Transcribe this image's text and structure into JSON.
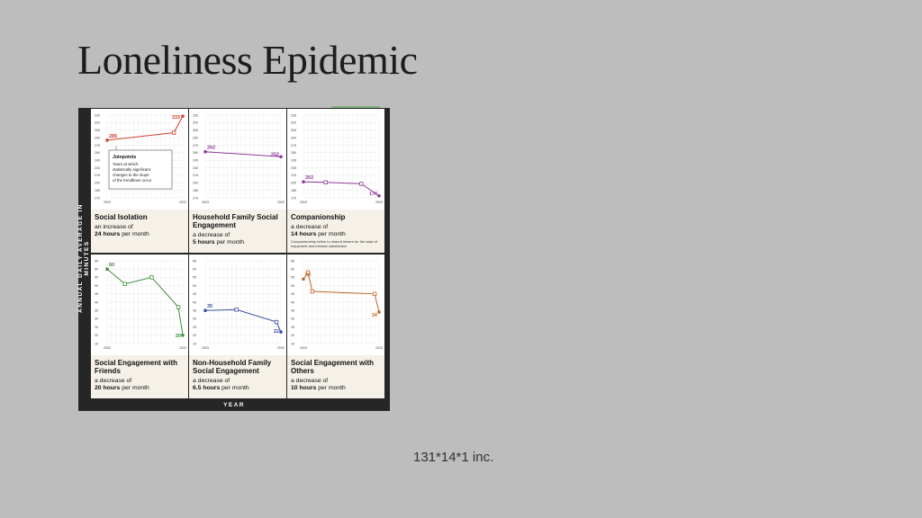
{
  "slide": {
    "title": "Loneliness Epidemic",
    "footer": "131*14*1 inc."
  },
  "figure": {
    "y_axis_label": "ANNUAL DAILY AVERAGE IN MINUTES",
    "x_axis_label": "YEAR",
    "x_tick_labels": [
      "2003",
      "2020"
    ],
    "joinpoints_note": {
      "title": "Joinpoints",
      "text": [
        "Years at which",
        "statistically significant",
        "changes to the slope",
        "of the trendlines occur"
      ]
    }
  },
  "chart_data": [
    {
      "type": "line",
      "title": "Social Isolation",
      "change_prefix": "an increase of",
      "change_amount": "24 hours",
      "change_suffix": "per month",
      "color": "#d6402e",
      "yticks": [
        335,
        320,
        305,
        290,
        275,
        260,
        245,
        230,
        215,
        200,
        185,
        170
      ],
      "ylim": [
        170,
        335
      ],
      "x": [
        2003,
        2018,
        2020
      ],
      "y": [
        285,
        300,
        333
      ],
      "labels": {
        "start": "285",
        "end": "333"
      },
      "joinpoint_x": [
        2018
      ]
    },
    {
      "type": "line",
      "title": "Household Family Social Engagement",
      "change_prefix": "a decrease of",
      "change_amount": "5 hours",
      "change_suffix": "per month",
      "color": "#8e3c99",
      "yticks": [
        335,
        320,
        305,
        290,
        275,
        260,
        245,
        230,
        215,
        200,
        185,
        170
      ],
      "ylim": [
        170,
        335
      ],
      "x": [
        2003,
        2020
      ],
      "y": [
        262,
        252
      ],
      "labels": {
        "start": "262",
        "end": "252"
      },
      "joinpoint_x": []
    },
    {
      "type": "line",
      "title": "Companionship",
      "change_prefix": "a decrease of",
      "change_amount": "14 hours",
      "change_suffix": "per month",
      "note": "Companionship refers to shared leisure for the sake of enjoyment and intrinsic satisfaction",
      "color": "#8e3c99",
      "yticks": [
        335,
        320,
        305,
        290,
        275,
        260,
        245,
        230,
        215,
        200,
        185,
        170
      ],
      "ylim": [
        170,
        335
      ],
      "x": [
        2003,
        2008,
        2016,
        2020
      ],
      "y": [
        202,
        201,
        198,
        174
      ],
      "labels": {
        "start": "202",
        "end": "174"
      },
      "joinpoint_x": [
        2008,
        2016
      ]
    },
    {
      "type": "line",
      "title": "Social Engagement with Friends",
      "change_prefix": "a decrease of",
      "change_amount": "20 hours",
      "change_suffix": "per month",
      "color": "#3f8f3a",
      "yticks": [
        65,
        60,
        55,
        50,
        45,
        40,
        35,
        30,
        25,
        20,
        15
      ],
      "ylim": [
        15,
        65
      ],
      "x": [
        2003,
        2007,
        2013,
        2019,
        2020
      ],
      "y": [
        60,
        51,
        55,
        37,
        20
      ],
      "labels": {
        "start": "60",
        "end": "20"
      },
      "joinpoint_x": [
        2007,
        2013,
        2019
      ]
    },
    {
      "type": "line",
      "title": "Non-Household Family Social Engagement",
      "change_prefix": "a decrease of",
      "change_amount": "6.5 hours",
      "change_suffix": "per month",
      "color": "#3c4fa0",
      "yticks": [
        65,
        60,
        55,
        50,
        45,
        40,
        35,
        30,
        25,
        20,
        15
      ],
      "ylim": [
        15,
        65
      ],
      "x": [
        2003,
        2010,
        2019,
        2020
      ],
      "y": [
        35,
        35.5,
        28,
        22
      ],
      "labels": {
        "start": "35",
        "end": "22"
      },
      "joinpoint_x": [
        2010,
        2019
      ]
    },
    {
      "type": "line",
      "title": "Social Engagement with Others",
      "change_prefix": "a decrease of",
      "change_amount": "10 hours",
      "change_suffix": "per month",
      "color": "#c0682a",
      "yticks": [
        65,
        60,
        55,
        50,
        45,
        40,
        35,
        30,
        25,
        20,
        15
      ],
      "ylim": [
        15,
        65
      ],
      "x": [
        2003,
        2004,
        2005,
        2019,
        2020
      ],
      "y": [
        54,
        58,
        46.5,
        45,
        34
      ],
      "labels": {
        "start": "54",
        "end": "34"
      },
      "joinpoint_x": [
        2004,
        2005,
        2019
      ]
    }
  ]
}
